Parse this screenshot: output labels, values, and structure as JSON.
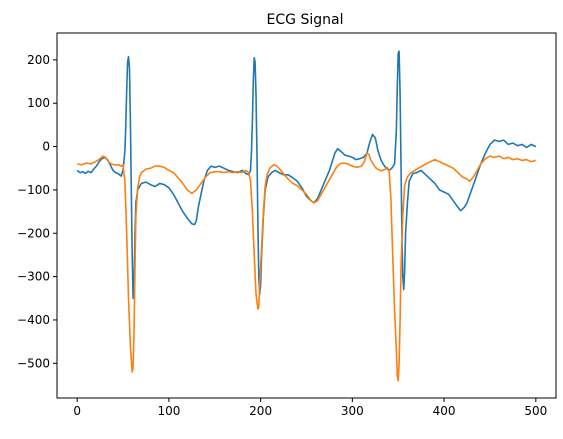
{
  "chart_data": {
    "type": "line",
    "title": "ECG Signal",
    "xlabel": "",
    "ylabel": "",
    "xlim": [
      -22,
      522
    ],
    "ylim": [
      -580,
      262
    ],
    "xticks": [
      0,
      100,
      200,
      300,
      400,
      500
    ],
    "yticks": [
      -500,
      -400,
      -300,
      -200,
      -100,
      0,
      100,
      200
    ],
    "grid": false,
    "legend": "none",
    "series": [
      {
        "color": "#1f77b4",
        "points": [
          [
            0,
            -55
          ],
          [
            3,
            -60
          ],
          [
            6,
            -58
          ],
          [
            9,
            -62
          ],
          [
            12,
            -57
          ],
          [
            15,
            -60
          ],
          [
            18,
            -52
          ],
          [
            21,
            -45
          ],
          [
            24,
            -35
          ],
          [
            27,
            -28
          ],
          [
            30,
            -25
          ],
          [
            33,
            -30
          ],
          [
            36,
            -42
          ],
          [
            39,
            -55
          ],
          [
            42,
            -60
          ],
          [
            45,
            -63
          ],
          [
            48,
            -68
          ],
          [
            50,
            -55
          ],
          [
            52,
            -10
          ],
          [
            53,
            50
          ],
          [
            54,
            130
          ],
          [
            55,
            195
          ],
          [
            56,
            207
          ],
          [
            57,
            180
          ],
          [
            58,
            60
          ],
          [
            59,
            -100
          ],
          [
            60,
            -250
          ],
          [
            61,
            -350
          ],
          [
            62,
            -310
          ],
          [
            63,
            -200
          ],
          [
            64,
            -130
          ],
          [
            66,
            -100
          ],
          [
            70,
            -85
          ],
          [
            75,
            -82
          ],
          [
            80,
            -88
          ],
          [
            85,
            -92
          ],
          [
            90,
            -85
          ],
          [
            95,
            -88
          ],
          [
            100,
            -95
          ],
          [
            105,
            -110
          ],
          [
            110,
            -130
          ],
          [
            115,
            -150
          ],
          [
            120,
            -165
          ],
          [
            125,
            -178
          ],
          [
            128,
            -180
          ],
          [
            130,
            -170
          ],
          [
            132,
            -140
          ],
          [
            135,
            -110
          ],
          [
            138,
            -80
          ],
          [
            142,
            -55
          ],
          [
            146,
            -45
          ],
          [
            150,
            -48
          ],
          [
            155,
            -45
          ],
          [
            160,
            -50
          ],
          [
            165,
            -55
          ],
          [
            170,
            -58
          ],
          [
            175,
            -60
          ],
          [
            180,
            -55
          ],
          [
            184,
            -62
          ],
          [
            187,
            -65
          ],
          [
            189,
            -55
          ],
          [
            190,
            -10
          ],
          [
            191,
            60
          ],
          [
            192,
            150
          ],
          [
            193,
            205
          ],
          [
            194,
            195
          ],
          [
            195,
            120
          ],
          [
            196,
            -20
          ],
          [
            197,
            -180
          ],
          [
            198,
            -300
          ],
          [
            199,
            -340
          ],
          [
            200,
            -320
          ],
          [
            201,
            -250
          ],
          [
            203,
            -160
          ],
          [
            205,
            -100
          ],
          [
            208,
            -70
          ],
          [
            212,
            -60
          ],
          [
            216,
            -55
          ],
          [
            220,
            -60
          ],
          [
            225,
            -65
          ],
          [
            230,
            -65
          ],
          [
            235,
            -72
          ],
          [
            240,
            -80
          ],
          [
            245,
            -95
          ],
          [
            250,
            -115
          ],
          [
            255,
            -125
          ],
          [
            258,
            -130
          ],
          [
            262,
            -120
          ],
          [
            266,
            -100
          ],
          [
            270,
            -80
          ],
          [
            275,
            -55
          ],
          [
            278,
            -35
          ],
          [
            281,
            -15
          ],
          [
            284,
            -5
          ],
          [
            288,
            -12
          ],
          [
            292,
            -20
          ],
          [
            296,
            -22
          ],
          [
            300,
            -25
          ],
          [
            304,
            -30
          ],
          [
            308,
            -28
          ],
          [
            312,
            -25
          ],
          [
            316,
            -15
          ],
          [
            319,
            10
          ],
          [
            322,
            28
          ],
          [
            325,
            20
          ],
          [
            328,
            -10
          ],
          [
            331,
            -30
          ],
          [
            334,
            -42
          ],
          [
            337,
            -50
          ],
          [
            340,
            -55
          ],
          [
            343,
            -50
          ],
          [
            346,
            -40
          ],
          [
            348,
            40
          ],
          [
            349,
            140
          ],
          [
            350,
            215
          ],
          [
            351,
            220
          ],
          [
            352,
            120
          ],
          [
            353,
            -40
          ],
          [
            354,
            -200
          ],
          [
            355,
            -300
          ],
          [
            356,
            -330
          ],
          [
            357,
            -290
          ],
          [
            358,
            -200
          ],
          [
            360,
            -130
          ],
          [
            362,
            -80
          ],
          [
            366,
            -62
          ],
          [
            370,
            -60
          ],
          [
            375,
            -55
          ],
          [
            380,
            -65
          ],
          [
            385,
            -75
          ],
          [
            390,
            -85
          ],
          [
            395,
            -100
          ],
          [
            400,
            -105
          ],
          [
            405,
            -110
          ],
          [
            410,
            -125
          ],
          [
            415,
            -140
          ],
          [
            418,
            -148
          ],
          [
            422,
            -140
          ],
          [
            425,
            -130
          ],
          [
            430,
            -100
          ],
          [
            435,
            -70
          ],
          [
            440,
            -40
          ],
          [
            445,
            -15
          ],
          [
            450,
            5
          ],
          [
            455,
            15
          ],
          [
            460,
            12
          ],
          [
            465,
            15
          ],
          [
            470,
            5
          ],
          [
            475,
            8
          ],
          [
            480,
            2
          ],
          [
            485,
            5
          ],
          [
            490,
            -2
          ],
          [
            495,
            5
          ],
          [
            500,
            0
          ]
        ]
      },
      {
        "color": "#ff7f0e",
        "points": [
          [
            0,
            -40
          ],
          [
            5,
            -42
          ],
          [
            10,
            -38
          ],
          [
            15,
            -40
          ],
          [
            20,
            -35
          ],
          [
            25,
            -28
          ],
          [
            28,
            -22
          ],
          [
            31,
            -25
          ],
          [
            34,
            -35
          ],
          [
            37,
            -40
          ],
          [
            40,
            -42
          ],
          [
            45,
            -42
          ],
          [
            48,
            -45
          ],
          [
            50,
            -42
          ],
          [
            52,
            -80
          ],
          [
            54,
            -200
          ],
          [
            56,
            -350
          ],
          [
            58,
            -460
          ],
          [
            60,
            -520
          ],
          [
            61,
            -510
          ],
          [
            62,
            -420
          ],
          [
            63,
            -280
          ],
          [
            64,
            -160
          ],
          [
            66,
            -95
          ],
          [
            68,
            -70
          ],
          [
            70,
            -60
          ],
          [
            75,
            -52
          ],
          [
            80,
            -50
          ],
          [
            85,
            -45
          ],
          [
            90,
            -45
          ],
          [
            95,
            -48
          ],
          [
            100,
            -55
          ],
          [
            105,
            -60
          ],
          [
            110,
            -72
          ],
          [
            115,
            -85
          ],
          [
            120,
            -100
          ],
          [
            125,
            -108
          ],
          [
            130,
            -100
          ],
          [
            135,
            -85
          ],
          [
            140,
            -70
          ],
          [
            145,
            -60
          ],
          [
            150,
            -58
          ],
          [
            155,
            -58
          ],
          [
            160,
            -60
          ],
          [
            165,
            -58
          ],
          [
            170,
            -60
          ],
          [
            175,
            -58
          ],
          [
            180,
            -60
          ],
          [
            184,
            -55
          ],
          [
            187,
            -60
          ],
          [
            189,
            -80
          ],
          [
            191,
            -150
          ],
          [
            193,
            -250
          ],
          [
            195,
            -340
          ],
          [
            197,
            -375
          ],
          [
            198,
            -370
          ],
          [
            199,
            -320
          ],
          [
            201,
            -230
          ],
          [
            203,
            -150
          ],
          [
            205,
            -90
          ],
          [
            207,
            -65
          ],
          [
            210,
            -50
          ],
          [
            214,
            -42
          ],
          [
            218,
            -45
          ],
          [
            222,
            -55
          ],
          [
            226,
            -65
          ],
          [
            230,
            -75
          ],
          [
            235,
            -85
          ],
          [
            240,
            -90
          ],
          [
            245,
            -100
          ],
          [
            250,
            -110
          ],
          [
            255,
            -125
          ],
          [
            258,
            -130
          ],
          [
            262,
            -125
          ],
          [
            266,
            -110
          ],
          [
            270,
            -95
          ],
          [
            274,
            -80
          ],
          [
            278,
            -65
          ],
          [
            282,
            -50
          ],
          [
            286,
            -40
          ],
          [
            290,
            -38
          ],
          [
            295,
            -40
          ],
          [
            300,
            -45
          ],
          [
            305,
            -48
          ],
          [
            310,
            -45
          ],
          [
            313,
            -35
          ],
          [
            316,
            -15
          ],
          [
            318,
            -18
          ],
          [
            320,
            -30
          ],
          [
            323,
            -42
          ],
          [
            326,
            -50
          ],
          [
            330,
            -55
          ],
          [
            333,
            -55
          ],
          [
            336,
            -52
          ],
          [
            338,
            -48
          ],
          [
            340,
            -55
          ],
          [
            342,
            -120
          ],
          [
            344,
            -250
          ],
          [
            346,
            -380
          ],
          [
            348,
            -470
          ],
          [
            349,
            -530
          ],
          [
            350,
            -540
          ],
          [
            351,
            -500
          ],
          [
            352,
            -400
          ],
          [
            353,
            -280
          ],
          [
            355,
            -160
          ],
          [
            357,
            -90
          ],
          [
            360,
            -70
          ],
          [
            364,
            -60
          ],
          [
            368,
            -55
          ],
          [
            372,
            -50
          ],
          [
            376,
            -45
          ],
          [
            380,
            -40
          ],
          [
            385,
            -35
          ],
          [
            390,
            -30
          ],
          [
            395,
            -35
          ],
          [
            400,
            -40
          ],
          [
            405,
            -45
          ],
          [
            410,
            -50
          ],
          [
            415,
            -60
          ],
          [
            420,
            -70
          ],
          [
            425,
            -75
          ],
          [
            428,
            -80
          ],
          [
            432,
            -70
          ],
          [
            436,
            -55
          ],
          [
            440,
            -40
          ],
          [
            445,
            -28
          ],
          [
            450,
            -22
          ],
          [
            455,
            -25
          ],
          [
            460,
            -22
          ],
          [
            465,
            -28
          ],
          [
            470,
            -25
          ],
          [
            475,
            -30
          ],
          [
            480,
            -28
          ],
          [
            485,
            -32
          ],
          [
            490,
            -30
          ],
          [
            495,
            -35
          ],
          [
            500,
            -32
          ]
        ]
      }
    ]
  }
}
